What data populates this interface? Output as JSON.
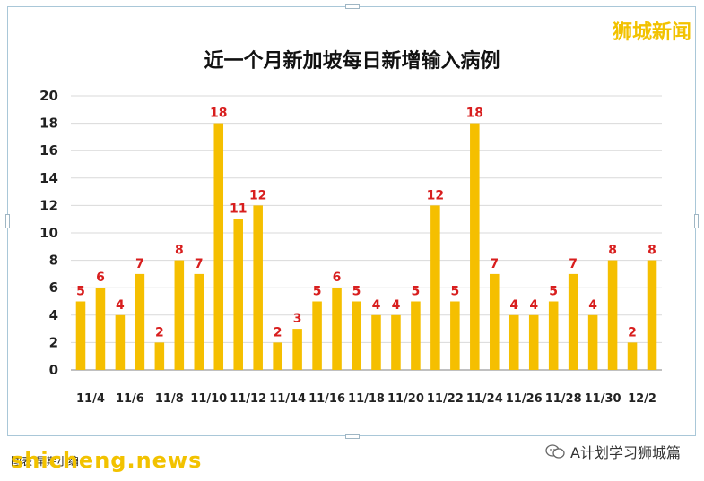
{
  "brand_label": "狮城新闻",
  "footer_left_text": "图表  早期小编",
  "watermark_text": "shicheng.news",
  "wechat_text": "A计划学习狮城篇",
  "colors": {
    "bar": "#f5bf00",
    "label": "#d81e1e",
    "grid": "#d9d9d9",
    "axis": "#808080"
  },
  "chart_data": {
    "type": "bar",
    "title": "近一个月新加坡每日新增输入病例",
    "xlabel": "",
    "ylabel": "",
    "ylim": [
      0,
      20
    ],
    "yticks": [
      0,
      2,
      4,
      6,
      8,
      10,
      12,
      14,
      16,
      18,
      20
    ],
    "grid": true,
    "legend": "none",
    "categories": [
      "11/4",
      "11/5",
      "11/6",
      "11/7",
      "11/8",
      "11/9",
      "11/10",
      "11/11",
      "11/12",
      "11/13",
      "11/14",
      "11/15",
      "11/16",
      "11/17",
      "11/18",
      "11/19",
      "11/20",
      "11/21",
      "11/22",
      "11/23",
      "11/24",
      "11/25",
      "11/26",
      "11/27",
      "11/28",
      "11/29",
      "11/30",
      "12/1",
      "12/2",
      "12/3"
    ],
    "tick_labels": [
      "11/4",
      "",
      "11/6",
      "",
      "11/8",
      "",
      "11/10",
      "",
      "11/12",
      "",
      "11/14",
      "",
      "11/16",
      "",
      "11/18",
      "",
      "11/20",
      "",
      "11/22",
      "",
      "11/24",
      "",
      "11/26",
      "",
      "11/28",
      "",
      "11/30",
      "",
      "12/2",
      ""
    ],
    "values": [
      5,
      6,
      4,
      7,
      2,
      8,
      7,
      18,
      11,
      12,
      2,
      3,
      5,
      6,
      5,
      4,
      4,
      5,
      12,
      5,
      18,
      7,
      4,
      4,
      5,
      7,
      4,
      8,
      2,
      8
    ]
  }
}
